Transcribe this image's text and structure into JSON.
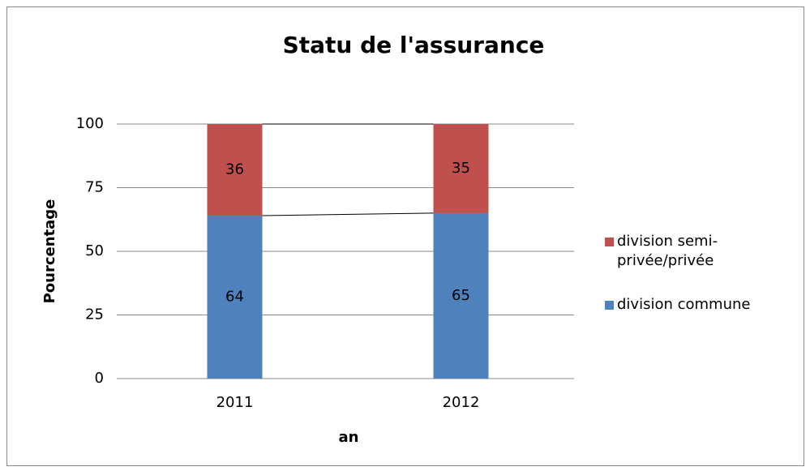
{
  "chart_data": {
    "type": "stacked_bar",
    "title": "Statu de l'assurance",
    "x_label": "an",
    "y_label": "Pourcentage",
    "categories": [
      "2011",
      "2012"
    ],
    "series": [
      {
        "name": "division commune",
        "color": "#4f81bd",
        "values": [
          64,
          65
        ]
      },
      {
        "name": "division semi-privée/privée",
        "color": "#c0504d",
        "values": [
          36,
          35
        ]
      }
    ],
    "ylim": [
      0,
      100
    ],
    "yticks": [
      0,
      25,
      50,
      75,
      100
    ],
    "grid": true,
    "series_lines": true,
    "legend": "right"
  }
}
